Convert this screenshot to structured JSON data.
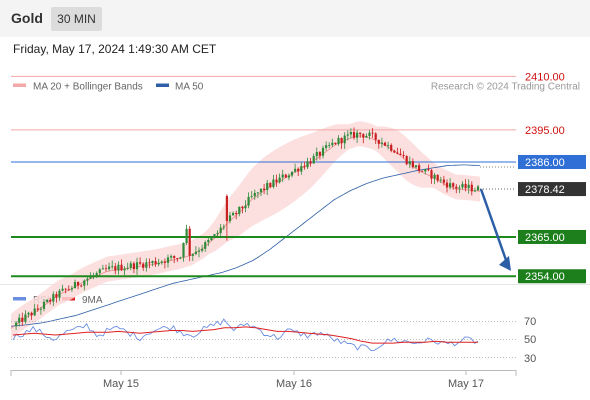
{
  "header": {
    "asset": "Gold",
    "timeframe": "30 MIN"
  },
  "datetime": "Friday, May 17, 2024 1:49:30 AM CET",
  "legend": {
    "ma20": "MA 20 + Bollinger Bands",
    "ma50": "MA 50",
    "credit": "Research © 2024 Trading Central"
  },
  "rsi_legend": {
    "rsi": "RSI",
    "ma9": "9MA"
  },
  "colors": {
    "resistance": "#f4a7a7",
    "support": "#1e8a1e",
    "ma50": "#2d5fa6",
    "pivot": "#2f6fd6",
    "bollinger": "#fbdada",
    "arrow": "#2d5fa6",
    "rsi": "#6b8fe0",
    "rsi_ma": "#e02020"
  },
  "chart_data": [
    {
      "type": "candlestick",
      "title": "Gold",
      "timeframe": "30 MIN",
      "x_ticks": [
        "May 15",
        "May 16",
        "May 17"
      ],
      "ylim": [
        2335,
        2418
      ],
      "current_price": 2378.42,
      "levels": [
        {
          "label": "2410.00",
          "value": 2410.0,
          "kind": "resistance"
        },
        {
          "label": "2395.00",
          "value": 2395.0,
          "kind": "resistance"
        },
        {
          "label": "2386.00",
          "value": 2386.0,
          "kind": "pivot"
        },
        {
          "label": "2378.42",
          "value": 2378.42,
          "kind": "last"
        },
        {
          "label": "2365.00",
          "value": 2365.0,
          "kind": "support"
        },
        {
          "label": "2354.00",
          "value": 2354.0,
          "kind": "support"
        }
      ],
      "close_path": [
        2340.0,
        2342.5,
        2344.5,
        2347.0,
        2349.5,
        2351.0,
        2353.0,
        2354.5,
        2356.0,
        2356.5,
        2357.0,
        2357.5,
        2358.0,
        2358.8,
        2359.5,
        2360.5,
        2362.5,
        2365.5,
        2369.5,
        2372.5,
        2376.0,
        2378.5,
        2380.5,
        2382.5,
        2384.5,
        2386.5,
        2389.0,
        2391.5,
        2393.0,
        2394.0,
        2393.2,
        2391.5,
        2389.5,
        2386.5,
        2384.0,
        2382.5,
        2380.5,
        2379.0,
        2378.8,
        2378.4
      ],
      "ma50_path": [
        2340.0,
        2340.4,
        2341.0,
        2342.0,
        2343.0,
        2344.5,
        2346.0,
        2347.5,
        2349.0,
        2350.5,
        2352.0,
        2353.0,
        2354.0,
        2355.0,
        2356.5,
        2358.5,
        2361.5,
        2365.0,
        2368.5,
        2372.0,
        2375.5,
        2378.0,
        2380.0,
        2381.5,
        2382.5,
        2383.5,
        2384.3,
        2385.0,
        2385.2,
        2385.0
      ],
      "forecast": {
        "from": 2378.4,
        "to": 2355.5
      }
    },
    {
      "type": "line",
      "title": "RSI",
      "ylim": [
        20,
        80
      ],
      "y_ticks": [
        70,
        50,
        30
      ],
      "series": [
        {
          "name": "RSI",
          "values": [
            52,
            57,
            62,
            55,
            50,
            58,
            61,
            66,
            54,
            60,
            63,
            57,
            52,
            59,
            62,
            64,
            58,
            55,
            61,
            66,
            71,
            60,
            68,
            63,
            56,
            52,
            60,
            57,
            54,
            58,
            52,
            47,
            43,
            41,
            39,
            46,
            50,
            48,
            46,
            49,
            48,
            45,
            47,
            50,
            47
          ]
        },
        {
          "name": "9MA",
          "values": [
            55,
            56,
            57,
            56,
            55,
            56,
            57,
            58,
            58,
            58,
            59,
            58,
            57,
            58,
            59,
            60,
            60,
            59,
            60,
            61,
            63,
            63,
            64,
            63,
            61,
            59,
            59,
            58,
            57,
            56,
            55,
            53,
            51,
            48,
            46,
            46,
            46,
            47,
            47,
            47,
            48,
            47,
            47,
            47,
            47
          ]
        }
      ]
    }
  ]
}
